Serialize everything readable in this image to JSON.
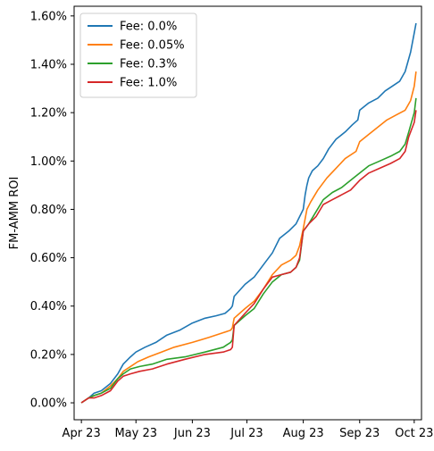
{
  "chart_data": {
    "type": "line",
    "title": "",
    "xlabel": "",
    "ylabel": "FM-AMM ROI",
    "x_ticks": [
      "Apr 23",
      "May 23",
      "Jun 23",
      "Jul 23",
      "Aug 23",
      "Sep 23",
      "Oct 23"
    ],
    "y_ticks": [
      "0.00%",
      "0.20%",
      "0.40%",
      "0.60%",
      "0.80%",
      "1.00%",
      "1.20%",
      "1.40%",
      "1.60%"
    ],
    "x_range": [
      "2023-03-28",
      "2023-10-05"
    ],
    "ylim": [
      -0.0007,
      0.0164
    ],
    "grid": false,
    "legend_position": "top-left",
    "series": [
      {
        "name": "Fee: 0.0%",
        "color": "#1f77b4",
        "points": [
          [
            "2023-04-01",
            0.0
          ],
          [
            "2023-04-05",
            0.0002
          ],
          [
            "2023-04-08",
            0.0004
          ],
          [
            "2023-04-12",
            0.0005
          ],
          [
            "2023-04-17",
            0.0008
          ],
          [
            "2023-04-21",
            0.0012
          ],
          [
            "2023-04-24",
            0.0016
          ],
          [
            "2023-04-28",
            0.0019
          ],
          [
            "2023-05-01",
            0.0021
          ],
          [
            "2023-05-06",
            0.0023
          ],
          [
            "2023-05-12",
            0.0025
          ],
          [
            "2023-05-18",
            0.0028
          ],
          [
            "2023-05-25",
            0.003
          ],
          [
            "2023-06-01",
            0.0033
          ],
          [
            "2023-06-08",
            0.0035
          ],
          [
            "2023-06-14",
            0.0036
          ],
          [
            "2023-06-19",
            0.0037
          ],
          [
            "2023-06-22",
            0.0039
          ],
          [
            "2023-06-23",
            0.004
          ],
          [
            "2023-06-24",
            0.0044
          ],
          [
            "2023-06-30",
            0.0049
          ],
          [
            "2023-07-05",
            0.0052
          ],
          [
            "2023-07-10",
            0.0057
          ],
          [
            "2023-07-15",
            0.0062
          ],
          [
            "2023-07-19",
            0.0068
          ],
          [
            "2023-07-24",
            0.0071
          ],
          [
            "2023-07-28",
            0.0074
          ],
          [
            "2023-07-30",
            0.0077
          ],
          [
            "2023-08-01",
            0.008
          ],
          [
            "2023-08-02",
            0.0086
          ],
          [
            "2023-08-03",
            0.009
          ],
          [
            "2023-08-04",
            0.0093
          ],
          [
            "2023-08-06",
            0.0096
          ],
          [
            "2023-08-09",
            0.0098
          ],
          [
            "2023-08-12",
            0.0101
          ],
          [
            "2023-08-15",
            0.0105
          ],
          [
            "2023-08-19",
            0.0109
          ],
          [
            "2023-08-24",
            0.0112
          ],
          [
            "2023-08-28",
            0.0115
          ],
          [
            "2023-08-31",
            0.0117
          ],
          [
            "2023-09-01",
            0.0121
          ],
          [
            "2023-09-06",
            0.0124
          ],
          [
            "2023-09-11",
            0.0126
          ],
          [
            "2023-09-15",
            0.0129
          ],
          [
            "2023-09-19",
            0.0131
          ],
          [
            "2023-09-23",
            0.0133
          ],
          [
            "2023-09-26",
            0.0137
          ],
          [
            "2023-09-29",
            0.0145
          ],
          [
            "2023-10-01",
            0.0153
          ],
          [
            "2023-10-02",
            0.0157
          ]
        ]
      },
      {
        "name": "Fee: 0.05%",
        "color": "#ff7f0e",
        "points": [
          [
            "2023-04-01",
            0.0
          ],
          [
            "2023-04-05",
            0.0002
          ],
          [
            "2023-04-08",
            0.0003
          ],
          [
            "2023-04-12",
            0.0004
          ],
          [
            "2023-04-17",
            0.0007
          ],
          [
            "2023-04-21",
            0.001
          ],
          [
            "2023-04-24",
            0.0013
          ],
          [
            "2023-04-28",
            0.0015
          ],
          [
            "2023-05-02",
            0.0017
          ],
          [
            "2023-05-08",
            0.0019
          ],
          [
            "2023-05-15",
            0.0021
          ],
          [
            "2023-05-22",
            0.0023
          ],
          [
            "2023-06-01",
            0.0025
          ],
          [
            "2023-06-10",
            0.0027
          ],
          [
            "2023-06-18",
            0.0029
          ],
          [
            "2023-06-22",
            0.003
          ],
          [
            "2023-06-23",
            0.0031
          ],
          [
            "2023-06-24",
            0.0035
          ],
          [
            "2023-06-30",
            0.0039
          ],
          [
            "2023-07-05",
            0.0042
          ],
          [
            "2023-07-10",
            0.0047
          ],
          [
            "2023-07-15",
            0.0053
          ],
          [
            "2023-07-20",
            0.0057
          ],
          [
            "2023-07-25",
            0.0059
          ],
          [
            "2023-07-28",
            0.0061
          ],
          [
            "2023-07-30",
            0.0065
          ],
          [
            "2023-08-01",
            0.0072
          ],
          [
            "2023-08-03",
            0.008
          ],
          [
            "2023-08-05",
            0.0083
          ],
          [
            "2023-08-09",
            0.0088
          ],
          [
            "2023-08-14",
            0.0093
          ],
          [
            "2023-08-19",
            0.0097
          ],
          [
            "2023-08-24",
            0.0101
          ],
          [
            "2023-08-30",
            0.0104
          ],
          [
            "2023-09-01",
            0.0108
          ],
          [
            "2023-09-06",
            0.0111
          ],
          [
            "2023-09-11",
            0.0114
          ],
          [
            "2023-09-16",
            0.0117
          ],
          [
            "2023-09-21",
            0.0119
          ],
          [
            "2023-09-26",
            0.0121
          ],
          [
            "2023-09-29",
            0.0125
          ],
          [
            "2023-10-01",
            0.0131
          ],
          [
            "2023-10-02",
            0.0137
          ]
        ]
      },
      {
        "name": "Fee: 0.3%",
        "color": "#2ca02c",
        "points": [
          [
            "2023-04-01",
            0.0
          ],
          [
            "2023-04-05",
            0.0002
          ],
          [
            "2023-04-08",
            0.0003
          ],
          [
            "2023-04-12",
            0.0004
          ],
          [
            "2023-04-17",
            0.0006
          ],
          [
            "2023-04-21",
            0.001
          ],
          [
            "2023-04-24",
            0.0012
          ],
          [
            "2023-04-28",
            0.0014
          ],
          [
            "2023-05-03",
            0.0015
          ],
          [
            "2023-05-10",
            0.0016
          ],
          [
            "2023-05-18",
            0.0018
          ],
          [
            "2023-05-28",
            0.0019
          ],
          [
            "2023-06-08",
            0.0021
          ],
          [
            "2023-06-18",
            0.0023
          ],
          [
            "2023-06-22",
            0.0025
          ],
          [
            "2023-06-23",
            0.0026
          ],
          [
            "2023-06-24",
            0.0032
          ],
          [
            "2023-06-30",
            0.0036
          ],
          [
            "2023-07-05",
            0.0039
          ],
          [
            "2023-07-10",
            0.0045
          ],
          [
            "2023-07-15",
            0.005
          ],
          [
            "2023-07-20",
            0.0053
          ],
          [
            "2023-07-25",
            0.0054
          ],
          [
            "2023-07-28",
            0.0056
          ],
          [
            "2023-07-30",
            0.0059
          ],
          [
            "2023-08-01",
            0.0071
          ],
          [
            "2023-08-04",
            0.0074
          ],
          [
            "2023-08-08",
            0.0079
          ],
          [
            "2023-08-12",
            0.0084
          ],
          [
            "2023-08-17",
            0.0087
          ],
          [
            "2023-08-22",
            0.0089
          ],
          [
            "2023-08-27",
            0.0092
          ],
          [
            "2023-09-01",
            0.0095
          ],
          [
            "2023-09-06",
            0.0098
          ],
          [
            "2023-09-12",
            0.01
          ],
          [
            "2023-09-18",
            0.0102
          ],
          [
            "2023-09-23",
            0.0104
          ],
          [
            "2023-09-26",
            0.0107
          ],
          [
            "2023-09-28",
            0.0112
          ],
          [
            "2023-10-01",
            0.012
          ],
          [
            "2023-10-02",
            0.0126
          ]
        ]
      },
      {
        "name": "Fee: 1.0%",
        "color": "#d62728",
        "points": [
          [
            "2023-04-01",
            0.0
          ],
          [
            "2023-04-05",
            0.0002
          ],
          [
            "2023-04-08",
            0.0002
          ],
          [
            "2023-04-12",
            0.0003
          ],
          [
            "2023-04-17",
            0.0005
          ],
          [
            "2023-04-21",
            0.0009
          ],
          [
            "2023-04-24",
            0.0011
          ],
          [
            "2023-04-28",
            0.0012
          ],
          [
            "2023-05-03",
            0.0013
          ],
          [
            "2023-05-10",
            0.0014
          ],
          [
            "2023-05-18",
            0.0016
          ],
          [
            "2023-05-28",
            0.0018
          ],
          [
            "2023-06-08",
            0.002
          ],
          [
            "2023-06-18",
            0.0021
          ],
          [
            "2023-06-22",
            0.0022
          ],
          [
            "2023-06-23",
            0.0023
          ],
          [
            "2023-06-24",
            0.0032
          ],
          [
            "2023-06-30",
            0.0037
          ],
          [
            "2023-07-05",
            0.0041
          ],
          [
            "2023-07-10",
            0.0047
          ],
          [
            "2023-07-15",
            0.0052
          ],
          [
            "2023-07-20",
            0.0053
          ],
          [
            "2023-07-25",
            0.0054
          ],
          [
            "2023-07-28",
            0.0056
          ],
          [
            "2023-07-30",
            0.006
          ],
          [
            "2023-08-01",
            0.0071
          ],
          [
            "2023-08-04",
            0.0074
          ],
          [
            "2023-08-08",
            0.0077
          ],
          [
            "2023-08-12",
            0.0082
          ],
          [
            "2023-08-17",
            0.0084
          ],
          [
            "2023-08-22",
            0.0086
          ],
          [
            "2023-08-27",
            0.0088
          ],
          [
            "2023-09-01",
            0.0092
          ],
          [
            "2023-09-06",
            0.0095
          ],
          [
            "2023-09-12",
            0.0097
          ],
          [
            "2023-09-18",
            0.0099
          ],
          [
            "2023-09-23",
            0.0101
          ],
          [
            "2023-09-26",
            0.0104
          ],
          [
            "2023-09-28",
            0.011
          ],
          [
            "2023-10-01",
            0.0116
          ],
          [
            "2023-10-02",
            0.0121
          ]
        ]
      }
    ]
  }
}
